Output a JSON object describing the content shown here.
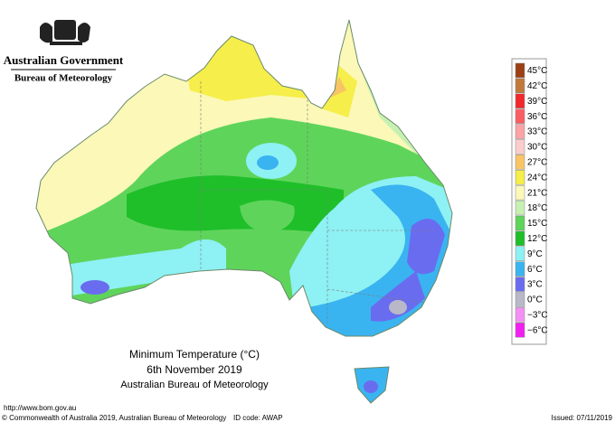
{
  "header": {
    "government": "Australian Government",
    "bureau": "Bureau of Meteorology"
  },
  "legend": {
    "items": [
      {
        "label": "45°C",
        "color": "#9c3f14"
      },
      {
        "label": "42°C",
        "color": "#c07a3c"
      },
      {
        "label": "39°C",
        "color": "#f2282c"
      },
      {
        "label": "36°C",
        "color": "#fa5e62"
      },
      {
        "label": "33°C",
        "color": "#fba3a6"
      },
      {
        "label": "30°C",
        "color": "#fccccc"
      },
      {
        "label": "27°C",
        "color": "#f8c465"
      },
      {
        "label": "24°C",
        "color": "#f6ee4a"
      },
      {
        "label": "21°C",
        "color": "#fbf8b8"
      },
      {
        "label": "18°C",
        "color": "#c7f1b2"
      },
      {
        "label": "15°C",
        "color": "#5fd45b"
      },
      {
        "label": "12°C",
        "color": "#1fbf2a"
      },
      {
        "label": "9°C",
        "color": "#8ef1f4"
      },
      {
        "label": "6°C",
        "color": "#3ab4f0"
      },
      {
        "label": "3°C",
        "color": "#6a6cf0"
      },
      {
        "label": "0°C",
        "color": "#b8b8c8"
      },
      {
        "label": "−3°C",
        "color": "#f490f4"
      },
      {
        "label": "−6°C",
        "color": "#f21ff2"
      }
    ]
  },
  "caption": {
    "title": "Minimum Temperature (°C)",
    "date": "6th November 2019",
    "source": "Australian Bureau of Meteorology"
  },
  "footer": {
    "url": "http://www.bom.gov.au",
    "copyright": "© Commonwealth of Australia 2019, Australian Bureau of Meteorology",
    "id": "ID code: AWAP",
    "issued": "Issued: 07/11/2019"
  }
}
